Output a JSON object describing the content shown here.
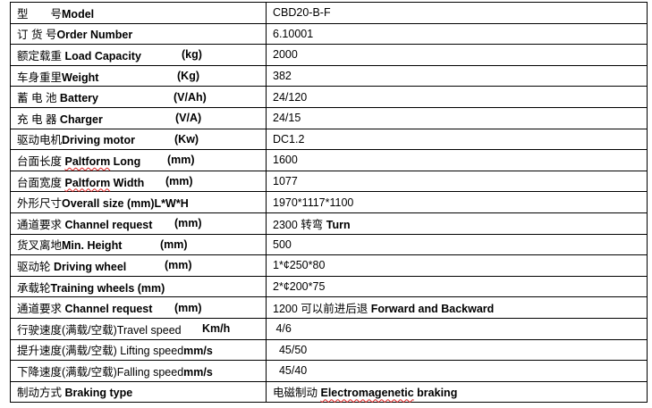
{
  "rows": [
    {
      "zh": "型　　号",
      "en": "Model",
      "unit": "",
      "value": "CBD20-B-F"
    },
    {
      "zh": "订 货 号",
      "en": "Order Number",
      "unit": "",
      "value": "6.10001"
    },
    {
      "zh": "额定载重 ",
      "en": "Load Capacity",
      "unit": "(kg)",
      "value": "2000"
    },
    {
      "zh": "车身重里",
      "en": "Weight",
      "unit": "(Kg)",
      "value": "382"
    },
    {
      "zh": "蓄 电 池 ",
      "en": "Battery",
      "unit": "(V/Ah)",
      "value": "24/120"
    },
    {
      "zh": "充 电 器 ",
      "en": "Charger",
      "unit": "(V/A)",
      "value": "24/15"
    },
    {
      "zh": "驱动电机",
      "en": "Driving motor",
      "unit": "(Kw)",
      "value": "DC1.2"
    },
    {
      "zh": "台面长度 ",
      "en_sp": "Paltform",
      "en": " Long",
      "unit": "(mm)",
      "value": "1600"
    },
    {
      "zh": "台面宽度 ",
      "en_sp": "Paltform",
      "en": " Width",
      "unit": "(mm)",
      "value": "1077"
    },
    {
      "zh": "外形尺寸",
      "en": "Overall size (mm)L*W*H",
      "unit": "",
      "value": "1970*1117*1100"
    },
    {
      "zh": "通道要求 ",
      "en": "Channel request",
      "unit": "(mm)",
      "value": "2300 转弯 ",
      "value_bold": "Turn"
    },
    {
      "zh": "货叉离地",
      "en": "Min. Height",
      "unit": "(mm)",
      "value": "500"
    },
    {
      "zh": "驱动轮 ",
      "en": "Driving wheel",
      "unit": "(mm)",
      "value": "1*¢250*80"
    },
    {
      "zh": "承载轮",
      "en": "Training wheels (mm)",
      "unit": "",
      "value": "2*¢200*75"
    },
    {
      "zh": "通道要求 ",
      "en": "Channel request",
      "unit": "(mm)",
      "value": "1200 可以前进后退 ",
      "value_bold": "Forward and Backward"
    },
    {
      "zh": "行驶速度(满载/空载)Travel speed",
      "en": "",
      "unit": "Km/h",
      "value": " 4/6"
    },
    {
      "zh": "提升速度(满载/空载) Lifting speed",
      "en": "mm/s",
      "unit": "",
      "value": "  45/50"
    },
    {
      "zh": "下降速度(满载/空载)Falling speed",
      "en": "mm/s",
      "unit": "",
      "value": "  45/40"
    },
    {
      "zh": "制动方式 ",
      "en": "Braking type",
      "unit": "",
      "value": "电磁制动 ",
      "value_sp": "Electromagenetic",
      "value_bold": " braking"
    }
  ]
}
